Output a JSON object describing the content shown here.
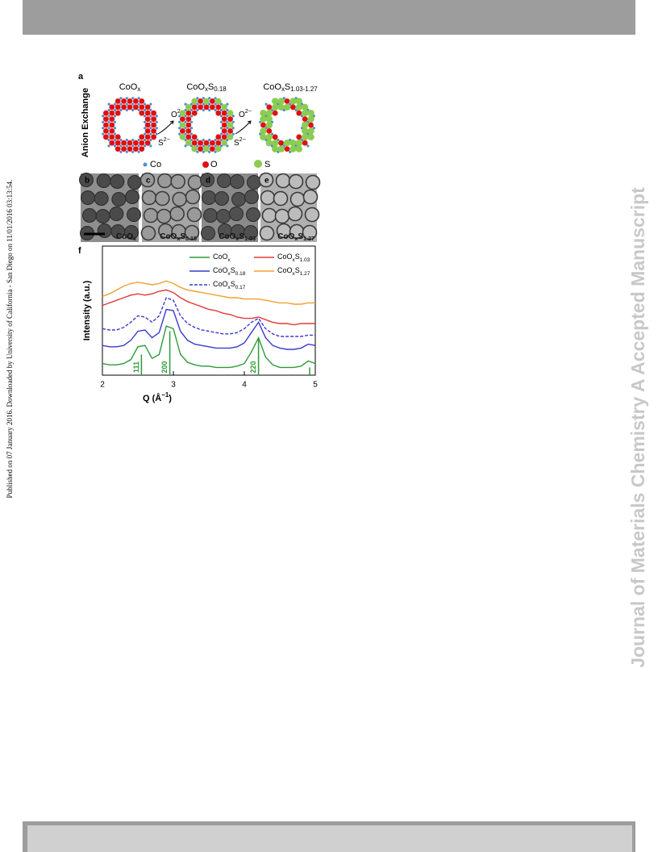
{
  "sidebar_text": "Published on 07 January 2016. Downloaded by University of California - San Diego on 11/01/2016 03:13:54.",
  "watermark": "Journal of Materials Chemistry A Accepted Manuscript",
  "figure": {
    "panel_a": {
      "label": "a",
      "side_label": "Anion Exchange",
      "stages": [
        "CoOx",
        "CoOxS0.18",
        "CoOxS1.03-1.27"
      ],
      "arrows": [
        {
          "top": "O2−",
          "bottom": "S2−"
        },
        {
          "top": "O2−",
          "bottom": "S2−"
        }
      ],
      "legend": [
        "Co",
        "O",
        "S"
      ]
    },
    "tem_panels": [
      {
        "label": "b",
        "caption": "CoOx"
      },
      {
        "label": "c",
        "caption": "CoOxS0.18"
      },
      {
        "label": "d",
        "caption": "CoOxS1.03"
      },
      {
        "label": "e",
        "caption": "CoOxS1.27"
      }
    ]
  },
  "chart_data": {
    "type": "line",
    "label": "f",
    "xlabel": "Q (Å−1)",
    "ylabel": "Intensity (a.u.)",
    "x": [
      2.0,
      2.1,
      2.2,
      2.3,
      2.4,
      2.5,
      2.6,
      2.7,
      2.8,
      2.9,
      3.0,
      3.1,
      3.2,
      3.3,
      3.4,
      3.5,
      3.6,
      3.7,
      3.8,
      3.9,
      4.0,
      4.1,
      4.2,
      4.3,
      4.4,
      4.5,
      4.6,
      4.7,
      4.8,
      4.9,
      5.0
    ],
    "xlim": [
      2,
      5
    ],
    "xticks": [
      2,
      3,
      4,
      5
    ],
    "ylim": [
      0,
      10
    ],
    "series": [
      {
        "name": "CoOx",
        "color": "#2e9a3a",
        "dash": false,
        "values": [
          0.9,
          0.8,
          0.8,
          0.9,
          1.2,
          2.2,
          2.3,
          1.3,
          1.6,
          3.8,
          3.6,
          1.6,
          1.0,
          0.8,
          0.7,
          0.7,
          0.6,
          0.6,
          0.6,
          0.7,
          0.9,
          1.8,
          2.9,
          1.4,
          0.8,
          0.6,
          0.6,
          0.6,
          0.7,
          1.1,
          0.9
        ]
      },
      {
        "name": "CoOxS1.03",
        "color": "#e03a3a",
        "dash": false,
        "values": [
          5.4,
          5.6,
          5.8,
          6.0,
          6.2,
          6.3,
          6.2,
          6.3,
          6.5,
          6.6,
          6.4,
          6.0,
          5.7,
          5.5,
          5.3,
          5.1,
          5.0,
          4.8,
          4.7,
          4.5,
          4.4,
          4.4,
          4.5,
          4.3,
          4.1,
          4.0,
          4.0,
          3.9,
          4.0,
          4.0,
          4.0
        ]
      },
      {
        "name": "CoOxS0.18",
        "color": "#3a3ad0",
        "dash": false,
        "values": [
          2.3,
          2.2,
          2.2,
          2.3,
          2.7,
          3.4,
          3.5,
          2.9,
          3.3,
          5.1,
          5.0,
          3.4,
          2.7,
          2.4,
          2.3,
          2.2,
          2.1,
          2.1,
          2.1,
          2.2,
          2.5,
          3.3,
          4.1,
          2.9,
          2.3,
          2.1,
          2.0,
          2.0,
          2.1,
          2.4,
          2.3
        ]
      },
      {
        "name": "CoOxS1.27",
        "color": "#f0a030",
        "dash": false,
        "values": [
          6.1,
          6.3,
          6.6,
          6.9,
          7.1,
          7.2,
          7.1,
          7.0,
          7.1,
          7.3,
          7.1,
          6.8,
          6.6,
          6.5,
          6.4,
          6.3,
          6.2,
          6.1,
          6.0,
          6.0,
          5.9,
          5.9,
          5.9,
          5.8,
          5.7,
          5.6,
          5.6,
          5.5,
          5.5,
          5.6,
          5.6
        ]
      },
      {
        "name": "CoOxS0.17",
        "color": "#3a3ad0",
        "dash": true,
        "values": [
          3.6,
          3.5,
          3.5,
          3.7,
          4.1,
          4.6,
          4.5,
          4.1,
          4.6,
          6.0,
          5.8,
          4.6,
          4.0,
          3.7,
          3.5,
          3.4,
          3.3,
          3.2,
          3.2,
          3.3,
          3.6,
          4.1,
          4.4,
          3.6,
          3.2,
          3.0,
          3.0,
          3.0,
          3.0,
          3.1,
          3.1
        ]
      }
    ],
    "reflections": [
      {
        "value": 2.55,
        "label": "111",
        "intensity": 1.6
      },
      {
        "value": 2.95,
        "label": "200",
        "intensity": 3.4
      },
      {
        "value": 4.2,
        "label": "220",
        "intensity": 2.8
      },
      {
        "value": 4.92,
        "intensity": 0.6
      }
    ],
    "reflection_color": "#2e9a3a"
  }
}
